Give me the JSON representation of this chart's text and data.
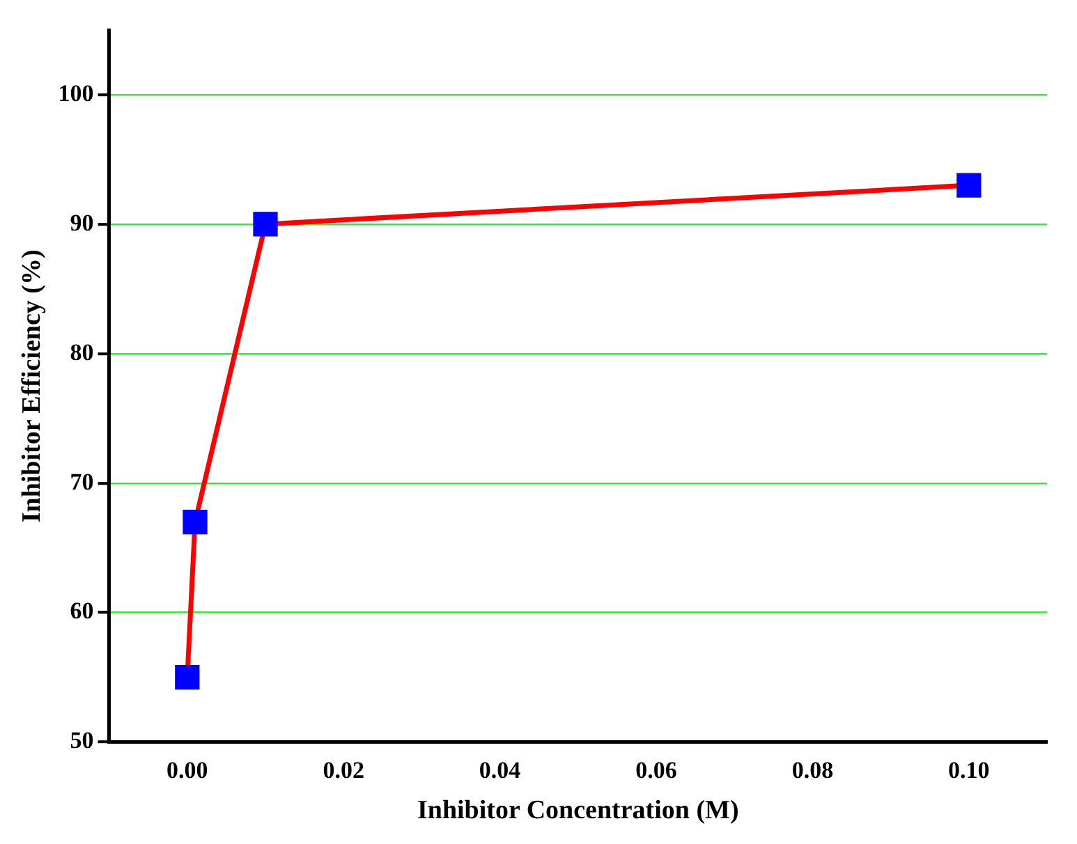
{
  "chart_data": {
    "type": "line",
    "xlabel": "Inhibitor Concentration (M)",
    "ylabel": "Inhibitor Efficiency (%)",
    "x": [
      0,
      0.001,
      0.01,
      0.1
    ],
    "series": [
      {
        "color": "#ff0000",
        "colors": [
          "#0000ff",
          "#0000ff",
          "#0000ff",
          "#0000ff"
        ],
        "values": [
          55,
          67,
          90,
          93
        ]
      }
    ],
    "marker": "square",
    "line_style": "solid",
    "xlim": [
      -0.01,
      0.11
    ],
    "xticks": [
      {
        "value": 0,
        "label": "0.00"
      },
      {
        "value": 0.02,
        "label": "0.02"
      },
      {
        "value": 0.04,
        "label": "0.04"
      },
      {
        "value": 0.06,
        "label": "0.06"
      },
      {
        "value": 0.08,
        "label": "0.08"
      },
      {
        "value": 0.1,
        "label": "0.10"
      }
    ],
    "ylim": [
      50,
      105
    ],
    "yticks": [
      50,
      60,
      70,
      80,
      90,
      100
    ],
    "grid": "y",
    "legend": false
  }
}
